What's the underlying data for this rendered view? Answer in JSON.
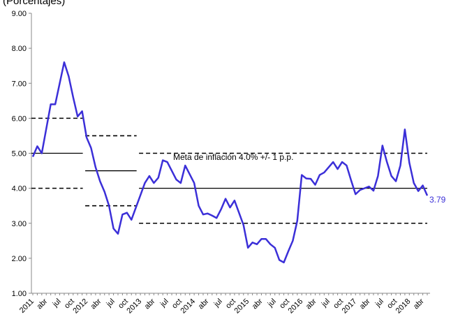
{
  "chart_data": {
    "type": "line",
    "title": "(Porcentajes)",
    "annotation": "Meta de inflación 4.0% +/- 1 p.p.",
    "categories": [
      "2011",
      null,
      null,
      "abr",
      null,
      null,
      "jul",
      null,
      null,
      "oct",
      null,
      null,
      "2012",
      null,
      null,
      "abr",
      null,
      null,
      "jul",
      null,
      null,
      "oct",
      null,
      null,
      "2013",
      null,
      null,
      "abr",
      null,
      null,
      "jul",
      null,
      null,
      "oct",
      null,
      null,
      "2014",
      null,
      null,
      "abr",
      null,
      null,
      "jul",
      null,
      null,
      "oct",
      null,
      null,
      "2015",
      null,
      null,
      "abr",
      null,
      null,
      "jul",
      null,
      null,
      "oct",
      null,
      null,
      "2016",
      null,
      null,
      "abr",
      null,
      null,
      "jul",
      null,
      null,
      "oct",
      null,
      null,
      "2017",
      null,
      null,
      "abr",
      null,
      null,
      "jul",
      null,
      null,
      "oct",
      null,
      null,
      "2018",
      null,
      null,
      "abr",
      null
    ],
    "series": [
      {
        "color": "#3b2fd8",
        "values": [
          4.9,
          5.2,
          5.0,
          5.7,
          6.4,
          6.4,
          7.0,
          7.6,
          7.2,
          6.6,
          6.05,
          6.2,
          5.45,
          5.15,
          4.6,
          4.2,
          3.9,
          3.5,
          2.85,
          2.7,
          3.25,
          3.3,
          3.1,
          3.45,
          3.8,
          4.15,
          4.35,
          4.15,
          4.3,
          4.8,
          4.75,
          4.5,
          4.25,
          4.15,
          4.65,
          4.4,
          4.15,
          3.5,
          3.25,
          3.28,
          3.22,
          3.15,
          3.4,
          3.7,
          3.45,
          3.65,
          3.3,
          2.95,
          2.3,
          2.45,
          2.4,
          2.55,
          2.55,
          2.4,
          2.3,
          1.95,
          1.88,
          2.2,
          2.5,
          3.07,
          4.38,
          4.28,
          4.27,
          4.1,
          4.38,
          4.45,
          4.6,
          4.75,
          4.55,
          4.75,
          4.65,
          4.23,
          3.83,
          3.95,
          4.0,
          4.05,
          3.93,
          4.35,
          5.22,
          4.75,
          4.35,
          4.2,
          4.65,
          5.68,
          4.73,
          4.15,
          3.92,
          4.08,
          3.79
        ]
      }
    ],
    "target_bands": [
      {
        "from": 0,
        "to": 11,
        "center": 5,
        "upper": 6,
        "lower": 4
      },
      {
        "from": 12,
        "to": 23,
        "center": 4.5,
        "upper": 5.5,
        "lower": 3.5
      },
      {
        "from": 24,
        "to": 88,
        "center": 4,
        "upper": 5,
        "lower": 3
      }
    ],
    "ylim": [
      1,
      9
    ],
    "yticks": [
      {
        "value": 1,
        "label": "1.00"
      },
      {
        "value": 2,
        "label": "2.00"
      },
      {
        "value": 3,
        "label": "3.00"
      },
      {
        "value": 4,
        "label": "4.00"
      },
      {
        "value": 5,
        "label": "5.00"
      },
      {
        "value": 6,
        "label": "6.00"
      },
      {
        "value": 7,
        "label": "7.00"
      },
      {
        "value": 8,
        "label": "8.00"
      },
      {
        "value": 9,
        "label": "9.00"
      }
    ]
  }
}
